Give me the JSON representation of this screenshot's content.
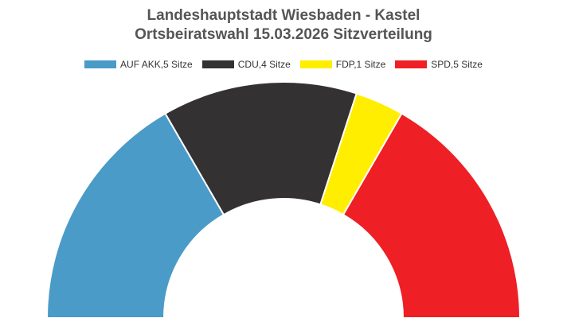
{
  "chart_data": {
    "type": "pie",
    "variant": "parliament-half-donut",
    "title": "Landeshauptstadt Wiesbaden - Kastel",
    "subtitle": "Ortsbeiratswahl 15.03.2026 Sitzverteilung",
    "legend_position": "top",
    "series": [
      {
        "name": "AUF AKK",
        "label": "AUF AKK,5 Sitze",
        "value": 5,
        "color": "#4a9bc8"
      },
      {
        "name": "CDU",
        "label": "CDU,4 Sitze",
        "value": 4,
        "color": "#333132"
      },
      {
        "name": "FDP",
        "label": "FDP,1 Sitze",
        "value": 1,
        "color": "#ffee00"
      },
      {
        "name": "SPD",
        "label": "SPD,5 Sitze",
        "value": 5,
        "color": "#ee1f25"
      }
    ]
  }
}
